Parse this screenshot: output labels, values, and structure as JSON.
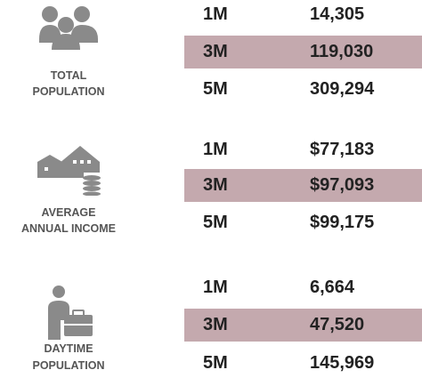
{
  "sections": [
    {
      "label": [
        "TOTAL",
        "POPULATION"
      ],
      "rows": [
        [
          "1M",
          "14,305"
        ],
        [
          "3M",
          "119,030"
        ],
        [
          "5M",
          "309,294"
        ]
      ]
    },
    {
      "label": [
        "AVERAGE",
        "ANNUAL INCOME"
      ],
      "rows": [
        [
          "1M",
          "$77,183"
        ],
        [
          "3M",
          "$97,093"
        ],
        [
          "5M",
          "$99,175"
        ]
      ]
    },
    {
      "label": [
        "DAYTIME",
        "POPULATION"
      ],
      "rows": [
        [
          "1M",
          "6,664"
        ],
        [
          "3M",
          "47,520"
        ],
        [
          "5M",
          "145,969"
        ]
      ]
    }
  ]
}
